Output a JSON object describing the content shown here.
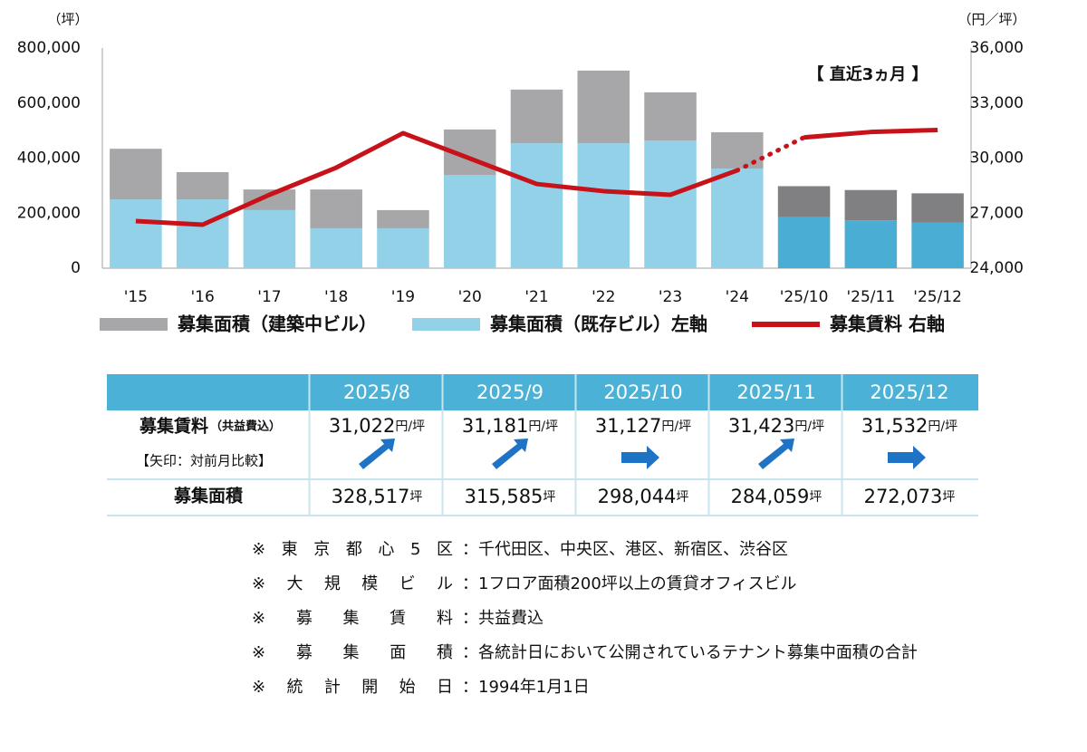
{
  "chart_data": {
    "type": "bar-line",
    "y_label": "（坪）",
    "y2_label": "（円／坪）",
    "annotation": "【 直近3ヵ月 】",
    "categories": [
      "'15",
      "'16",
      "'17",
      "'18",
      "'19",
      "'20",
      "'21",
      "'22",
      "'23",
      "'24",
      "'25/10",
      "'25/11",
      "'25/12"
    ],
    "series": [
      {
        "name": "募集面積（建築中ビル）",
        "color": "#a7a6a8",
        "recent_color": "#807f82",
        "stacked": true,
        "values": [
          184000,
          99000,
          75000,
          141000,
          66000,
          165000,
          195000,
          264000,
          175000,
          132000,
          113000,
          110000,
          107000
        ]
      },
      {
        "name": "募集面積（既存ビル）左軸",
        "color": "#92d1e7",
        "recent_color": "#4aaed4",
        "stacked": true,
        "values": [
          250000,
          250000,
          211000,
          145000,
          145000,
          339000,
          454000,
          454000,
          464000,
          362000,
          185000,
          174000,
          165000
        ]
      },
      {
        "name": "募集賃料 右軸",
        "color": "#c8121a",
        "type": "line",
        "axis": "y2",
        "values": [
          26570,
          26370,
          28000,
          29480,
          31360,
          29980,
          28590,
          28200,
          28000,
          29330,
          31127,
          31423,
          31532
        ]
      }
    ],
    "ylim": [
      0,
      800000
    ],
    "yticks": [
      0,
      {
        "value": 200000,
        "label": "200,000"
      },
      {
        "value": 400000,
        "label": "400,000"
      },
      {
        "value": 600000,
        "label": "600,000"
      },
      {
        "value": 800000,
        "label": "800,000"
      }
    ],
    "y2lim": [
      24000,
      36000
    ],
    "y2ticks": [
      {
        "value": 24000,
        "label": "24,000"
      },
      {
        "value": 27000,
        "label": "27,000"
      },
      {
        "value": 30000,
        "label": "30,000"
      },
      {
        "value": 33000,
        "label": "33,000"
      },
      {
        "value": 36000,
        "label": "36,000"
      }
    ],
    "grid": false
  },
  "table": {
    "months": [
      "2025/8",
      "2025/9",
      "2025/10",
      "2025/11",
      "2025/12"
    ],
    "rent_label": "募集賃料",
    "rent_note": "（共益費込）",
    "arrow_note": "【矢印：対前月比較】",
    "rent_values": [
      "31,022",
      "31,181",
      "31,127",
      "31,423",
      "31,532"
    ],
    "rent_unit": "円/坪",
    "area_label": "募集面積",
    "area_values": [
      "328,517",
      "315,585",
      "298,044",
      "284,059",
      "272,073"
    ],
    "area_unit": "坪"
  },
  "notes": [
    {
      "label": "※ 東 京 都 心 5 区",
      "text": "：千代田区、中央区、港区、新宿区、渋谷区"
    },
    {
      "label": "※ 大 規 模 ビ ル",
      "text": "：1フロア面積200坪以上の賃貸オフィスビル"
    },
    {
      "label": "※ 募 集 賃 料",
      "text": "：共益費込"
    },
    {
      "label": "※ 募 集 面 積",
      "text": "：各統計日において公開されているテナント募集中面積の合計"
    },
    {
      "label": "※ 統 計 開 始 日",
      "text": "：1994年1月1日"
    }
  ]
}
